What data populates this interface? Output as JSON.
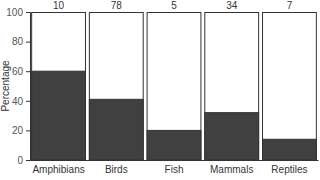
{
  "chart_data": {
    "type": "bar",
    "y_label": "Percentage",
    "categories": [
      "Amphibians",
      "Birds",
      "Fish",
      "Mammals",
      "Reptiles"
    ],
    "values": [
      60,
      41,
      20,
      32,
      14
    ],
    "counts": [
      10,
      78,
      5,
      34,
      7
    ],
    "color": "#404040",
    "ylim": [
      0,
      100
    ],
    "yticks": [
      0,
      20,
      40,
      60,
      80,
      100
    ],
    "grid": false
  }
}
